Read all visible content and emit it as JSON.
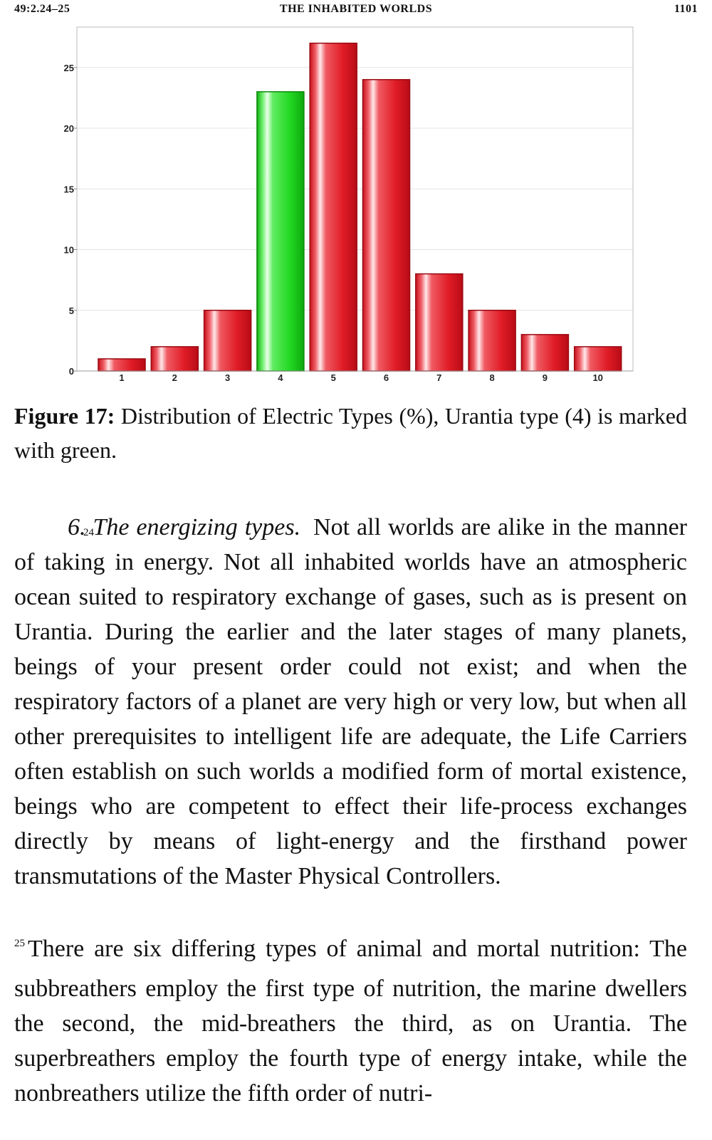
{
  "header": {
    "reference": "49:2.24–25",
    "title": "THE INHABITED WORLDS",
    "page_number": "1101"
  },
  "chart_data": {
    "type": "bar",
    "categories": [
      "1",
      "2",
      "3",
      "4",
      "5",
      "6",
      "7",
      "8",
      "9",
      "10"
    ],
    "values": [
      1,
      2,
      5,
      23,
      27,
      24,
      8,
      5,
      3,
      2
    ],
    "highlight_index": 3,
    "colors": {
      "default": "#e8202a",
      "highlight": "#20d820"
    },
    "ylim": [
      0,
      28
    ],
    "yticks": [
      "0",
      "5",
      "10",
      "15",
      "20",
      "25"
    ],
    "grid": true,
    "title": "",
    "xlabel": "",
    "ylabel": ""
  },
  "caption": {
    "label": "Figure 17:",
    "text": "Distribution of Electric Types (%), Urantia type (4) is marked with green."
  },
  "paragraphs": [
    {
      "number": "24",
      "lead": "6. The energizing types.",
      "text": "Not all worlds are alike in the manner of taking in energy. Not all inhabited worlds have an atmospheric ocean suited to respiratory exchange of gases, such as is present on Urantia. During the earlier and the later stages of many planets, beings of your present order could not exist; and when the respiratory factors of a planet are very high or very low, but when all other prerequisites to intelligent life are adequate, the Life Carriers often establish on such worlds a modified form of mortal existence, beings who are competent to effect their life-process exchanges directly by means of light-energy and the firsthand power transmutations of the Master Physical Controllers."
    },
    {
      "number": "25",
      "text": "There are six differing types of animal and mortal nutrition: The subbreathers employ the first type of nutrition, the marine dwellers the second, the mid-breathers the third, as on Urantia. The superbreathers employ the fourth type of energy intake, while the nonbreathers utilize the fifth order of nutri-"
    }
  ]
}
